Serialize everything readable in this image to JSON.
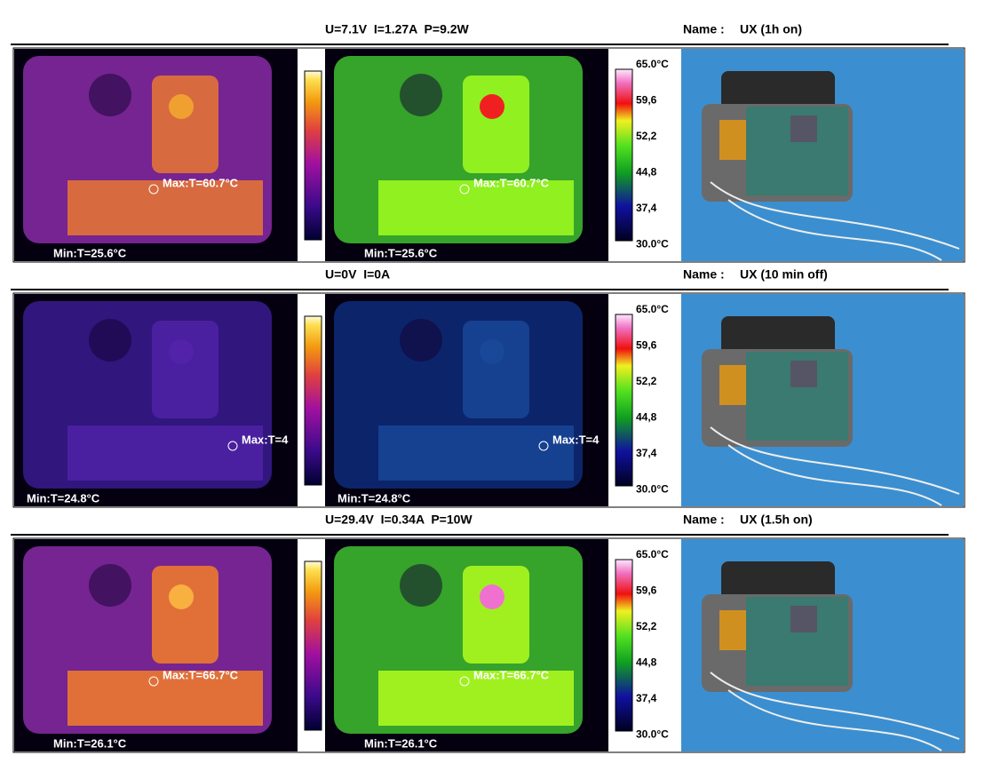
{
  "rows": [
    {
      "conditions": "U=7.1V  I=1.27A  P=9.2W",
      "name_label": "Name :",
      "name": "UX (1h on)",
      "max": "Max:T=60.7°C",
      "min": "Min:T=25.6°C"
    },
    {
      "conditions": "U=0V  I=0A",
      "name_label": "Name :",
      "name": "UX (10 min off)",
      "max": "Max:T=4",
      "min": "Min:T=24.8°C"
    },
    {
      "conditions": "U=29.4V  I=0.34A  P=10W",
      "name_label": "Name :",
      "name": "UX (1.5h on)",
      "max": "Max:T=66.7°C",
      "min": "Min:T=26.1°C"
    }
  ],
  "scale": [
    "65.0°C",
    "59,6",
    "52,2",
    "44,8",
    "37,4",
    "30.0°C"
  ]
}
